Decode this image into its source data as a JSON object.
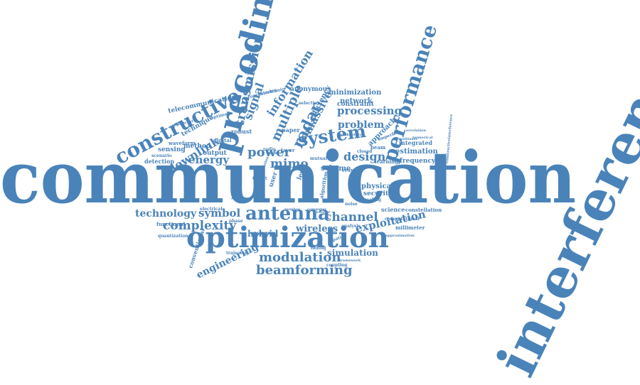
{
  "colors": {
    "primary": "#4a83b9",
    "background": "#ffffff"
  },
  "words": [
    {
      "text": "communication",
      "weight": "xl"
    },
    {
      "text": "interference",
      "weight": "xl"
    },
    {
      "text": "precoding",
      "weight": "large"
    },
    {
      "text": "optimization",
      "weight": "large"
    },
    {
      "text": "constructive",
      "weight": "large"
    },
    {
      "text": "performance",
      "weight": "large"
    },
    {
      "text": "antenna",
      "weight": "large"
    },
    {
      "text": "system",
      "weight": "medium"
    },
    {
      "text": "transmission",
      "weight": "medium"
    },
    {
      "text": "beamforming",
      "weight": "medium"
    },
    {
      "text": "modulation",
      "weight": "medium"
    },
    {
      "text": "engineering",
      "weight": "medium"
    },
    {
      "text": "complexity",
      "weight": "medium"
    },
    {
      "text": "channel",
      "weight": "medium"
    },
    {
      "text": "exploitation",
      "weight": "medium"
    },
    {
      "text": "mimo",
      "weight": "medium"
    },
    {
      "text": "power",
      "weight": "medium"
    },
    {
      "text": "radar",
      "weight": "medium"
    },
    {
      "text": "massive",
      "weight": "medium"
    },
    {
      "text": "multiple",
      "weight": "medium"
    },
    {
      "text": "signal",
      "weight": "medium"
    },
    {
      "text": "information",
      "weight": "medium"
    },
    {
      "text": "processing",
      "weight": "medium"
    },
    {
      "text": "problem",
      "weight": "medium"
    },
    {
      "text": "design",
      "weight": "medium"
    },
    {
      "text": "symbol",
      "weight": "medium"
    },
    {
      "text": "downlink",
      "weight": "medium"
    },
    {
      "text": "energy",
      "weight": "medium"
    },
    {
      "text": "technology",
      "weight": "medium"
    },
    {
      "text": "hybrid",
      "weight": "small"
    },
    {
      "text": "wireless",
      "weight": "small"
    },
    {
      "text": "simulation",
      "weight": "small"
    },
    {
      "text": "network",
      "weight": "small"
    },
    {
      "text": "minimization",
      "weight": "small"
    },
    {
      "text": "constraint",
      "weight": "small"
    },
    {
      "text": "efficiency",
      "weight": "small"
    },
    {
      "text": "anonymous",
      "weight": "small"
    },
    {
      "text": "approach",
      "weight": "small"
    },
    {
      "text": "estimation",
      "weight": "small"
    },
    {
      "text": "integrated",
      "weight": "small"
    },
    {
      "text": "frequency",
      "weight": "small"
    },
    {
      "text": "physical",
      "weight": "small"
    },
    {
      "text": "security",
      "weight": "small"
    },
    {
      "text": "science",
      "weight": "small"
    },
    {
      "text": "millimeter",
      "weight": "small"
    },
    {
      "text": "computational",
      "weight": "small"
    },
    {
      "text": "constellation",
      "weight": "small"
    },
    {
      "text": "telecommunication",
      "weight": "small"
    },
    {
      "text": "technique",
      "weight": "small"
    },
    {
      "text": "sensing",
      "weight": "small"
    },
    {
      "text": "method",
      "weight": "small"
    },
    {
      "text": "output",
      "weight": "small"
    },
    {
      "text": "detection",
      "weight": "small"
    },
    {
      "text": "scenario",
      "weight": "small"
    },
    {
      "text": "waveform",
      "weight": "small"
    },
    {
      "text": "robust",
      "weight": "small"
    },
    {
      "text": "digital",
      "weight": "small"
    },
    {
      "text": "functional",
      "weight": "small"
    },
    {
      "text": "quantization",
      "weight": "small"
    },
    {
      "text": "conventional",
      "weight": "small"
    },
    {
      "text": "hardware",
      "weight": "small"
    },
    {
      "text": "user",
      "weight": "small"
    },
    {
      "text": "level",
      "weight": "small"
    },
    {
      "text": "scheme",
      "weight": "small"
    },
    {
      "text": "learning",
      "weight": "small"
    },
    {
      "text": "beam",
      "weight": "small"
    },
    {
      "text": "paper",
      "weight": "small"
    },
    {
      "text": "selection",
      "weight": "small"
    },
    {
      "text": "programming",
      "weight": "small"
    },
    {
      "text": "electrical",
      "weight": "small"
    },
    {
      "text": "phase",
      "weight": "small"
    },
    {
      "text": "coupling",
      "weight": "small"
    },
    {
      "text": "framework",
      "weight": "small"
    },
    {
      "text": "noise",
      "weight": "small"
    },
    {
      "text": "analysis",
      "weight": "small"
    },
    {
      "text": "spatial",
      "weight": "small"
    },
    {
      "text": "algorithm",
      "weight": "small"
    },
    {
      "text": "result",
      "weight": "small"
    },
    {
      "text": "scaling",
      "weight": "small"
    },
    {
      "text": "correlation",
      "weight": "small"
    },
    {
      "text": "numerical",
      "weight": "small"
    },
    {
      "text": "multiuser",
      "weight": "small"
    },
    {
      "text": "imperfect",
      "weight": "small"
    },
    {
      "text": "constructiveinterference",
      "weight": "small"
    },
    {
      "text": "closed",
      "weight": "small"
    },
    {
      "text": "mutual",
      "weight": "small"
    },
    {
      "text": "rate",
      "weight": "small"
    },
    {
      "text": "layer",
      "weight": "small"
    },
    {
      "text": "radio",
      "weight": "small"
    },
    {
      "text": "electronic",
      "weight": "small"
    },
    {
      "text": "probability",
      "weight": "small"
    },
    {
      "text": "trajectory",
      "weight": "small"
    },
    {
      "text": "approximation",
      "weight": "small"
    },
    {
      "text": "target",
      "weight": "small"
    },
    {
      "text": "number",
      "weight": "small"
    },
    {
      "text": "fading",
      "weight": "small"
    },
    {
      "text": "computer",
      "weight": "small"
    },
    {
      "text": "optimal",
      "weight": "small"
    },
    {
      "text": "significant",
      "weight": "small"
    },
    {
      "text": "resolution",
      "weight": "small"
    },
    {
      "text": "transmitter",
      "weight": "small"
    },
    {
      "text": "receiver",
      "weight": "small"
    }
  ]
}
